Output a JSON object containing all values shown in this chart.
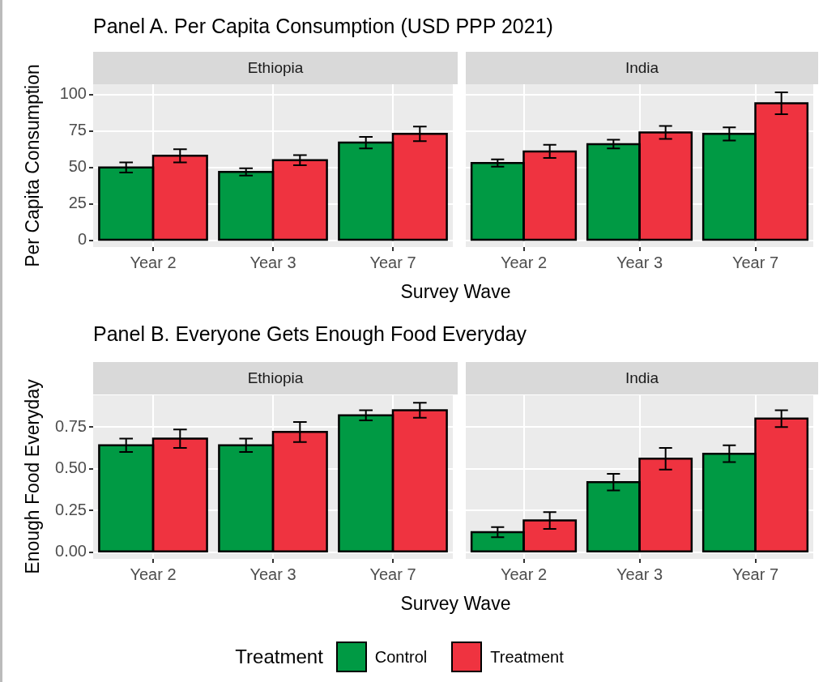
{
  "chart_data": [
    {
      "type": "bar",
      "title": "Panel A. Per Capita Consumption (USD PPP 2021)",
      "subtitle": "Ethiopia",
      "xlabel": "Survey Wave",
      "ylabel": "Per Capita Consumption",
      "categories": [
        "Year 2",
        "Year 3",
        "Year 7"
      ],
      "ylim": [
        -4.5,
        107
      ],
      "yticks": [
        0,
        25,
        50,
        75,
        100
      ],
      "grid": true,
      "legend": "bottom",
      "legend_title": "Treatment",
      "series": [
        {
          "name": "Control",
          "color": "#009a44",
          "values": [
            50,
            47,
            67
          ],
          "errors": [
            3.5,
            2.5,
            4
          ]
        },
        {
          "name": "Treatment",
          "color": "#ef3340",
          "values": [
            58,
            55,
            73
          ],
          "errors": [
            4.5,
            3.5,
            5
          ]
        }
      ]
    },
    {
      "type": "bar",
      "subtitle": "India",
      "categories": [
        "Year 2",
        "Year 3",
        "Year 7"
      ],
      "ylim": [
        -4.5,
        107
      ],
      "yticks": [
        0,
        25,
        50,
        75,
        100
      ],
      "grid": true,
      "tick_labels": "x",
      "series": [
        {
          "color": "#009a44",
          "values": [
            53,
            66,
            73
          ],
          "errors": [
            2.5,
            3,
            4.5
          ]
        },
        {
          "color": "#ef3340",
          "values": [
            61,
            74,
            94
          ],
          "errors": [
            4.5,
            4.5,
            7.5
          ]
        }
      ]
    },
    {
      "type": "bar",
      "title": "Panel B. Everyone Gets Enough Food Everyday",
      "subtitle": "Ethiopia",
      "xlabel": "Survey Wave",
      "ylabel": "Enough Food Everyday",
      "categories": [
        "Year 2",
        "Year 3",
        "Year 7"
      ],
      "ylim": [
        -0.04,
        0.94
      ],
      "yticks": [
        {
          "value": 0,
          "label": "0.00"
        },
        {
          "value": 0.25,
          "label": "0.25"
        },
        {
          "value": 0.5,
          "label": "0.50"
        },
        {
          "value": 0.75,
          "label": "0.75"
        }
      ],
      "grid": true,
      "series": [
        {
          "color": "#009a44",
          "values": [
            0.64,
            0.64,
            0.82
          ],
          "errors": [
            0.04,
            0.04,
            0.03
          ]
        },
        {
          "color": "#ef3340",
          "values": [
            0.68,
            0.72,
            0.85
          ],
          "errors": [
            0.055,
            0.06,
            0.045
          ]
        }
      ]
    },
    {
      "type": "bar",
      "subtitle": "India",
      "categories": [
        "Year 2",
        "Year 3",
        "Year 7"
      ],
      "ylim": [
        -0.04,
        0.94
      ],
      "yticks": [
        0,
        0.25,
        0.5,
        0.75
      ],
      "grid": true,
      "tick_labels": "x",
      "series": [
        {
          "color": "#009a44",
          "values": [
            0.12,
            0.42,
            0.59
          ],
          "errors": [
            0.03,
            0.05,
            0.05
          ]
        },
        {
          "color": "#ef3340",
          "values": [
            0.19,
            0.56,
            0.8
          ],
          "errors": [
            0.05,
            0.065,
            0.05
          ]
        }
      ]
    }
  ]
}
